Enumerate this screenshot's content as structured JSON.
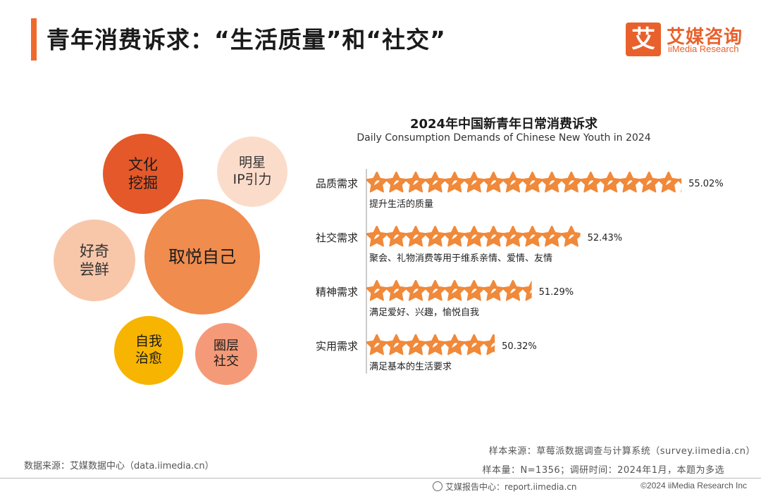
{
  "page": {
    "title": "青年消费诉求：“生活质量”和“社交”"
  },
  "logo": {
    "mark": "艾",
    "cn": "艾媒咨询",
    "en": "iiMedia Research"
  },
  "bubbles": [
    {
      "label": "文化\n挖掘",
      "color": "#e4582a"
    },
    {
      "label": "明星\nIP引力",
      "color": "#fbdccb"
    },
    {
      "label": "好奇\n尝鲜",
      "color": "#f8c7aa"
    },
    {
      "label": "取悦自己",
      "color": "#ef8c4e"
    },
    {
      "label": "自我\n治愈",
      "color": "#f7b400"
    },
    {
      "label": "圈层\n社交",
      "color": "#f59a78"
    }
  ],
  "chart_data": {
    "type": "bar",
    "title": "2024年中国新青年日常消费诉求",
    "subtitle": "Daily Consumption Demands of Chinese New Youth in 2024",
    "categories": [
      "品质需求",
      "社交需求",
      "精神需求",
      "实用需求"
    ],
    "descriptions": [
      "提升生活的质量",
      "聚会、礼物消费等用于维系亲情、爱情、友情",
      "满足爱好、兴趣，愉悦自我",
      "满足基本的生活要求"
    ],
    "values": [
      55.02,
      52.43,
      51.29,
      50.32
    ],
    "value_labels": [
      "55.02%",
      "52.43%",
      "51.29%",
      "50.32%"
    ],
    "star_counts": [
      16.2,
      11,
      8.5,
      6.6
    ],
    "unit": "%",
    "colors": {
      "star": "#f0893a",
      "star_inner": "#ffffff"
    }
  },
  "footer": {
    "data_source": "数据来源：艾媒数据中心（data.iimedia.cn）",
    "sample_source": "样本来源：草莓派数据调查与计算系统（survey.iimedia.cn）",
    "sample_size": "样本量：N=1356；调研时间：2024年1月，本题为多选",
    "report_center": "艾媒报告中心：report.iimedia.cn",
    "copyright": "©2024  iiMedia Research  Inc"
  }
}
